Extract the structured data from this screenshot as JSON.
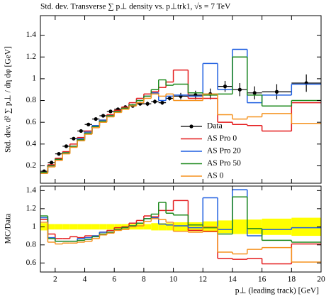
{
  "chart_data": [
    {
      "type": "histogram",
      "title": "Std. dev. Transverse ∑ p⊥ density vs. p⊥trk1, √s = 7 TeV",
      "ylabel": "Std. dev. d² ∑ p⊥ / dη dφ [GeV]",
      "bins": [
        1,
        1.5,
        2,
        2.5,
        3,
        3.5,
        4,
        4.5,
        5,
        5.5,
        6,
        6.5,
        7,
        7.5,
        8,
        8.5,
        9,
        9.5,
        10,
        11,
        12,
        13,
        14,
        15,
        16,
        18,
        20
      ],
      "xlim": [
        1,
        20
      ],
      "xticks": [
        2,
        4,
        6,
        8,
        10,
        12,
        14,
        16,
        18,
        20
      ],
      "ylim": [
        0.04,
        1.58
      ],
      "yticks": [
        0.2,
        0.4,
        0.6,
        0.8,
        1,
        1.2,
        1.4
      ],
      "legend": "lower right",
      "series": [
        {
          "name": "Data",
          "color": "#000000",
          "style": "points",
          "values": [
            0.15,
            0.23,
            0.31,
            0.38,
            0.45,
            0.52,
            0.58,
            0.63,
            0.66,
            0.7,
            0.72,
            0.74,
            0.75,
            0.77,
            0.77,
            0.79,
            0.78,
            0.82,
            0.84,
            0.85,
            0.86,
            0.93,
            0.9,
            0.87,
            0.88,
            0.96
          ],
          "errors": [
            0.01,
            0.01,
            0.01,
            0.01,
            0.01,
            0.01,
            0.01,
            0.01,
            0.01,
            0.01,
            0.01,
            0.01,
            0.01,
            0.015,
            0.02,
            0.02,
            0.02,
            0.02,
            0.03,
            0.04,
            0.05,
            0.05,
            0.06,
            0.06,
            0.07,
            0.08
          ]
        },
        {
          "name": "AS Pro 0",
          "color": "#e41a1c",
          "style": "steps",
          "values": [
            0.14,
            0.21,
            0.27,
            0.33,
            0.4,
            0.46,
            0.52,
            0.57,
            0.62,
            0.67,
            0.71,
            0.74,
            0.78,
            0.82,
            0.86,
            0.88,
            0.92,
            0.97,
            1.08,
            0.82,
            0.82,
            0.6,
            0.58,
            0.57,
            0.52,
            0.78
          ]
        },
        {
          "name": "AS Pro 20",
          "color": "#1f5fe0",
          "style": "steps",
          "values": [
            0.14,
            0.2,
            0.26,
            0.32,
            0.38,
            0.45,
            0.51,
            0.57,
            0.62,
            0.66,
            0.7,
            0.73,
            0.76,
            0.8,
            0.84,
            0.87,
            0.8,
            0.84,
            0.85,
            0.84,
            1.14,
            0.9,
            1.27,
            0.78,
            0.85,
            0.95
          ]
        },
        {
          "name": "AS Pro 50",
          "color": "#1e8a1e",
          "style": "steps",
          "values": [
            0.14,
            0.2,
            0.26,
            0.32,
            0.38,
            0.44,
            0.5,
            0.56,
            0.61,
            0.66,
            0.7,
            0.73,
            0.76,
            0.8,
            0.84,
            0.9,
            0.99,
            0.94,
            0.95,
            0.87,
            0.85,
            0.86,
            1.2,
            0.85,
            0.75,
            0.8
          ]
        },
        {
          "name": "AS 0",
          "color": "#f5921e",
          "style": "steps",
          "values": [
            0.13,
            0.19,
            0.25,
            0.31,
            0.37,
            0.43,
            0.49,
            0.55,
            0.6,
            0.65,
            0.69,
            0.72,
            0.75,
            0.78,
            0.82,
            0.86,
            0.84,
            0.86,
            0.8,
            0.8,
            0.86,
            0.67,
            0.63,
            0.65,
            0.68,
            0.59
          ]
        }
      ]
    },
    {
      "type": "histogram",
      "ylabel": "MC/Data",
      "xlabel": "p⊥ (leading track) [GeV]",
      "bins": [
        1,
        1.5,
        2,
        2.5,
        3,
        3.5,
        4,
        4.5,
        5,
        5.5,
        6,
        6.5,
        7,
        7.5,
        8,
        8.5,
        9,
        9.5,
        10,
        11,
        12,
        13,
        14,
        15,
        16,
        18,
        20
      ],
      "xlim": [
        1,
        20
      ],
      "xticks": [
        2,
        4,
        6,
        8,
        10,
        12,
        14,
        16,
        18,
        20
      ],
      "ylim": [
        0.5,
        1.45
      ],
      "yticks": [
        0.6,
        0.8,
        1,
        1.2,
        1.4
      ],
      "band_color": "#ffff00",
      "band_low": [
        0.96,
        0.97,
        0.97,
        0.97,
        0.97,
        0.97,
        0.97,
        0.97,
        0.97,
        0.97,
        0.97,
        0.97,
        0.97,
        0.97,
        0.97,
        0.96,
        0.96,
        0.96,
        0.95,
        0.95,
        0.94,
        0.93,
        0.92,
        0.92,
        0.91,
        0.9
      ],
      "band_high": [
        1.04,
        1.03,
        1.03,
        1.03,
        1.03,
        1.03,
        1.03,
        1.03,
        1.03,
        1.03,
        1.03,
        1.03,
        1.03,
        1.03,
        1.03,
        1.04,
        1.04,
        1.04,
        1.05,
        1.05,
        1.06,
        1.07,
        1.08,
        1.08,
        1.09,
        1.1
      ],
      "series": [
        {
          "color": "#e41a1c",
          "values": [
            1.08,
            0.92,
            0.87,
            0.87,
            0.89,
            0.88,
            0.9,
            0.9,
            0.94,
            0.96,
            0.99,
            1.0,
            1.04,
            1.07,
            1.12,
            1.11,
            1.18,
            1.18,
            1.29,
            0.96,
            0.95,
            0.65,
            0.64,
            0.65,
            0.59,
            0.81
          ]
        },
        {
          "color": "#1f5fe0",
          "values": [
            1.1,
            0.88,
            0.84,
            0.84,
            0.84,
            0.87,
            0.88,
            0.9,
            0.94,
            0.94,
            0.97,
            0.99,
            1.01,
            1.04,
            1.09,
            1.1,
            1.03,
            1.02,
            1.01,
            0.99,
            1.32,
            0.97,
            1.41,
            0.9,
            0.97,
            0.99
          ]
        },
        {
          "color": "#1e8a1e",
          "values": [
            1.12,
            0.87,
            0.84,
            0.84,
            0.84,
            0.85,
            0.86,
            0.89,
            0.92,
            0.94,
            0.97,
            0.99,
            1.01,
            1.04,
            1.09,
            1.14,
            1.27,
            1.15,
            1.13,
            1.02,
            0.99,
            0.92,
            1.33,
            0.98,
            0.85,
            0.83
          ]
        },
        {
          "color": "#f5921e",
          "values": [
            1.05,
            0.83,
            0.81,
            0.82,
            0.82,
            0.83,
            0.84,
            0.87,
            0.91,
            0.93,
            0.96,
            0.97,
            1.0,
            1.01,
            1.06,
            1.09,
            1.08,
            1.05,
            0.95,
            0.94,
            1.0,
            0.72,
            0.7,
            0.75,
            0.77,
            0.61
          ]
        }
      ]
    }
  ]
}
